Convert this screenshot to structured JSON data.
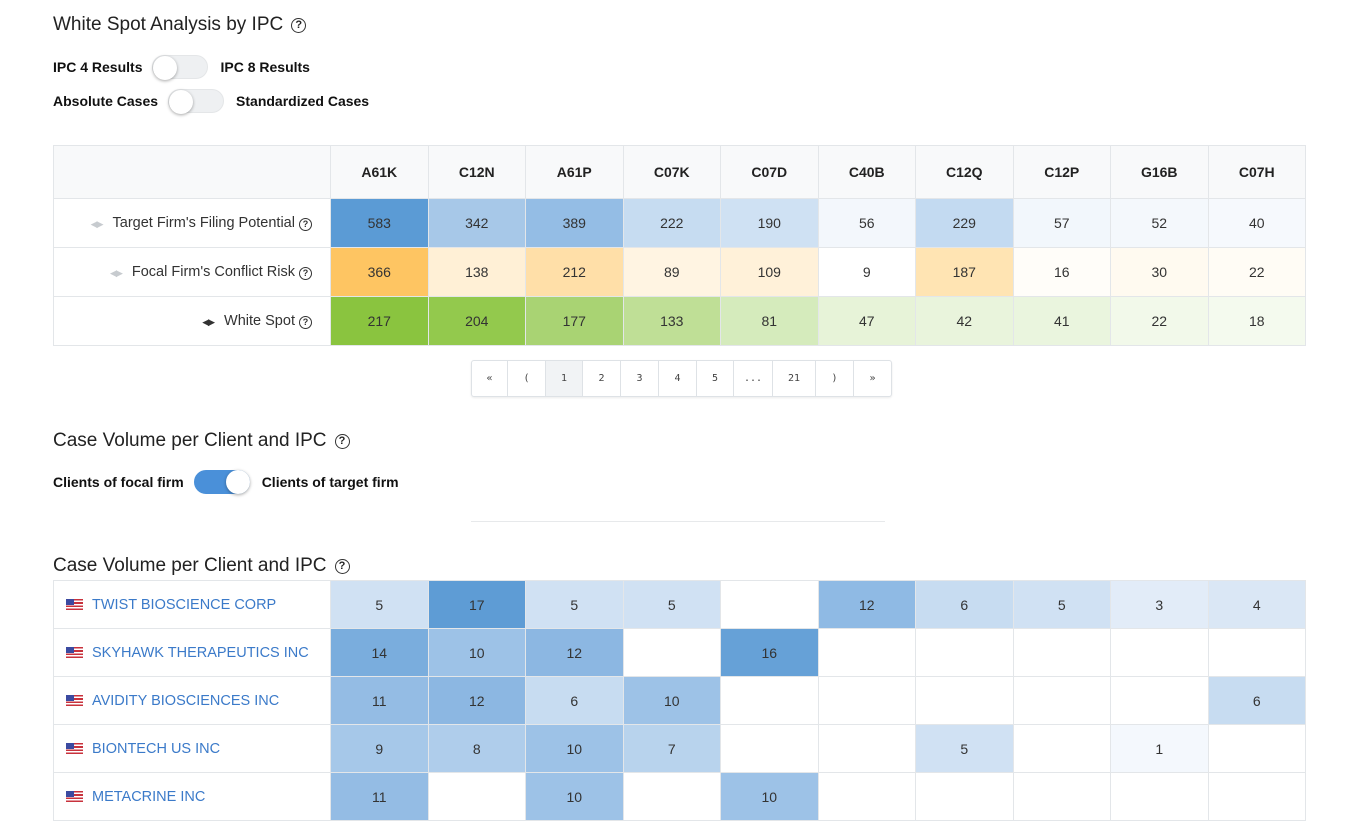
{
  "white_spot": {
    "title": "White Spot Analysis by IPC",
    "toggle1_left": "IPC 4 Results",
    "toggle1_right": "IPC 8 Results",
    "toggle2_left": "Absolute Cases",
    "toggle2_right": "Standardized Cases",
    "columns": [
      "A61K",
      "C12N",
      "A61P",
      "C07K",
      "C07D",
      "C40B",
      "C12Q",
      "C12P",
      "G16B",
      "C07H"
    ],
    "rows": [
      {
        "label": "Target Firm's Filing Potential",
        "values": [
          583,
          342,
          389,
          222,
          190,
          56,
          229,
          57,
          52,
          40
        ],
        "colors": [
          "#5b9bd5",
          "#a7c8e8",
          "#94bde5",
          "#c6dcf1",
          "#cfe1f3",
          "#f3f7fc",
          "#c3daf1",
          "#f2f7fc",
          "#f4f8fc",
          "#f6f9fd"
        ]
      },
      {
        "label": "Focal Firm's Conflict Risk",
        "values": [
          366,
          138,
          212,
          89,
          109,
          9,
          187,
          16,
          30,
          22
        ],
        "colors": [
          "#fec562",
          "#fff0d6",
          "#ffdfa8",
          "#fff4e2",
          "#fff1d9",
          "#ffffff",
          "#ffe4b3",
          "#fffdf9",
          "#fffaf0",
          "#fffcf5"
        ]
      },
      {
        "label": "White Spot",
        "values": [
          217,
          204,
          177,
          133,
          81,
          47,
          42,
          41,
          22,
          18
        ],
        "colors": [
          "#8ac43f",
          "#93c94d",
          "#a9d373",
          "#bfdf96",
          "#d5ebbc",
          "#e7f3d8",
          "#e9f4dc",
          "#eaf5de",
          "#f2f9ea",
          "#f4faee"
        ]
      }
    ],
    "pagination": [
      "«",
      "(",
      "1",
      "2",
      "3",
      "4",
      "5",
      "...",
      "21",
      ")",
      "»"
    ],
    "active_page": "1"
  },
  "case_volume_toggle": {
    "title": "Case Volume per Client and IPC",
    "left": "Clients of focal firm",
    "right": "Clients of target firm"
  },
  "case_volume": {
    "title": "Case Volume per Client and IPC",
    "clients": [
      {
        "name": "TWIST BIOSCIENCE CORP",
        "values": [
          "5",
          "17",
          "5",
          "5",
          "",
          "12",
          "6",
          "5",
          "3",
          "4"
        ],
        "colors": [
          "#d0e1f3",
          "#5e9cd5",
          "#d0e1f3",
          "#d0e1f3",
          "#ffffff",
          "#8fbae4",
          "#c7dcf1",
          "#d0e1f3",
          "#e2ecf8",
          "#dae7f5"
        ]
      },
      {
        "name": "SKYHAWK THERAPEUTICS INC",
        "values": [
          "14",
          "10",
          "12",
          "",
          "16",
          "",
          "",
          "",
          "",
          ""
        ],
        "colors": [
          "#7aaddd",
          "#9dc2e7",
          "#8cb7e2",
          "#ffffff",
          "#66a1d7",
          "#ffffff",
          "#ffffff",
          "#ffffff",
          "#ffffff",
          "#ffffff"
        ]
      },
      {
        "name": "AVIDITY BIOSCIENCES INC",
        "values": [
          "11",
          "12",
          "6",
          "10",
          "",
          "",
          "",
          "",
          "",
          "6"
        ],
        "colors": [
          "#94bce4",
          "#8cb7e2",
          "#c7dcf1",
          "#9dc2e7",
          "#ffffff",
          "#ffffff",
          "#ffffff",
          "#ffffff",
          "#ffffff",
          "#c7dcf1"
        ]
      },
      {
        "name": "BIONTECH US INC",
        "values": [
          "9",
          "8",
          "10",
          "7",
          "",
          "",
          "5",
          "",
          "1",
          ""
        ],
        "colors": [
          "#a6c8e9",
          "#afcdeb",
          "#9dc2e7",
          "#b8d3ed",
          "#ffffff",
          "#ffffff",
          "#d0e1f3",
          "#ffffff",
          "#f4f8fd",
          "#ffffff"
        ]
      },
      {
        "name": "METACRINE INC",
        "values": [
          "11",
          "",
          "10",
          "",
          "10",
          "",
          "",
          "",
          "",
          ""
        ],
        "colors": [
          "#94bce4",
          "#ffffff",
          "#9dc2e7",
          "#ffffff",
          "#9dc2e7",
          "#ffffff",
          "#ffffff",
          "#ffffff",
          "#ffffff",
          "#ffffff"
        ]
      }
    ]
  }
}
